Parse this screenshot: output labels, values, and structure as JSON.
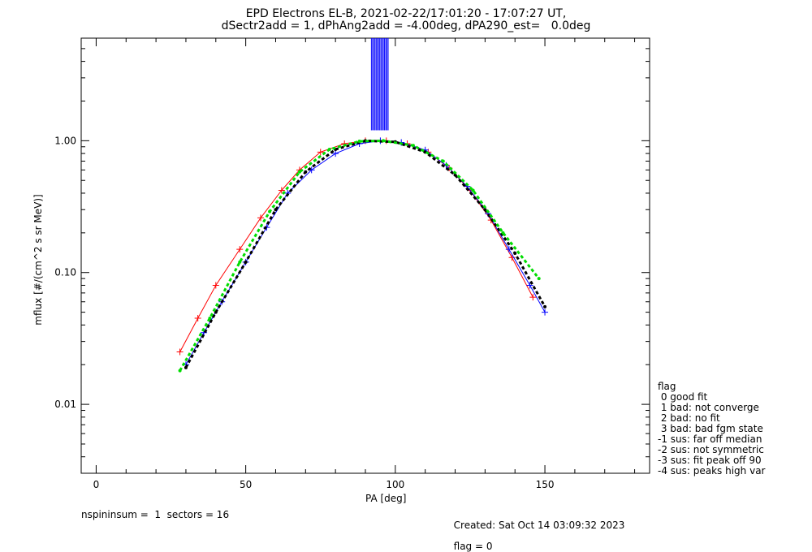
{
  "title_line1": "EPD Electrons EL-B, 2021-02-22/17:01:20 - 17:07:27 UT,",
  "title_line2": "dSectr2add = 1, dPhAng2add = -4.00deg, dPA290_est=   0.0deg",
  "footer": {
    "left": "nspininsum =  1  sectors = 16",
    "created": "Created: Sat Oct 14 03:09:32 2023",
    "flag": "flag = 0"
  },
  "legend": {
    "title": "flag",
    "items": [
      " 0 good fit",
      " 1 bad: not converge",
      " 2 bad: no fit",
      " 3 bad: bad fgm state",
      "-1 sus: far off median",
      "-2 sus: not symmetric",
      "-3 sus: fit peak off 90",
      "-4 sus: peaks high var"
    ]
  },
  "colors": {
    "red": "#ff0000",
    "blue": "#0000ff",
    "green": "#00dd00",
    "black": "#000000"
  },
  "chart_data": {
    "type": "line",
    "xlabel": "PA [deg]",
    "ylabel": "mflux [#/(cm^2 s sr MeV)]",
    "xlim": [
      -5,
      185
    ],
    "ylim": [
      0.003,
      6.0
    ],
    "yscale": "log",
    "xticks": [
      0,
      50,
      100,
      150
    ],
    "xtick_labels": [
      "0",
      "50",
      "100",
      "150"
    ],
    "yticks": [
      0.01,
      0.1,
      1.0
    ],
    "ytick_labels": [
      "0.01",
      "0.10",
      "1.00"
    ],
    "spike_band": {
      "x_range": [
        92,
        98
      ],
      "y_range": [
        1.2,
        6.0
      ]
    },
    "series": [
      {
        "color": "red",
        "marker": "+",
        "x": [
          28,
          34,
          40,
          48,
          55,
          62,
          68,
          75,
          83,
          90,
          97,
          104,
          111,
          118,
          125,
          132,
          139,
          146
        ],
        "y": [
          0.025,
          0.045,
          0.08,
          0.15,
          0.26,
          0.42,
          0.6,
          0.82,
          0.95,
          1.0,
          1.0,
          0.95,
          0.82,
          0.62,
          0.42,
          0.25,
          0.13,
          0.065
        ]
      },
      {
        "color": "blue",
        "marker": "+",
        "x": [
          30,
          36,
          42,
          50,
          57,
          64,
          72,
          80,
          88,
          95,
          102,
          110,
          117,
          124,
          131,
          138,
          145,
          150
        ],
        "y": [
          0.02,
          0.035,
          0.06,
          0.12,
          0.22,
          0.4,
          0.6,
          0.8,
          0.95,
          1.0,
          0.97,
          0.85,
          0.65,
          0.45,
          0.28,
          0.15,
          0.08,
          0.05
        ]
      },
      {
        "color": "black",
        "marker": "dot",
        "x": [
          30,
          40,
          50,
          60,
          70,
          80,
          90,
          100,
          110,
          120,
          130,
          140,
          150
        ],
        "y": [
          0.019,
          0.05,
          0.12,
          0.3,
          0.58,
          0.86,
          1.0,
          0.98,
          0.82,
          0.55,
          0.3,
          0.14,
          0.055
        ]
      },
      {
        "color": "green",
        "marker": "dot",
        "x": [
          28,
          38,
          48,
          58,
          68,
          78,
          88,
          96,
          106,
          116,
          126,
          136,
          148
        ],
        "y": [
          0.018,
          0.045,
          0.12,
          0.29,
          0.58,
          0.86,
          0.99,
          1.0,
          0.92,
          0.7,
          0.42,
          0.2,
          0.09
        ]
      }
    ]
  }
}
